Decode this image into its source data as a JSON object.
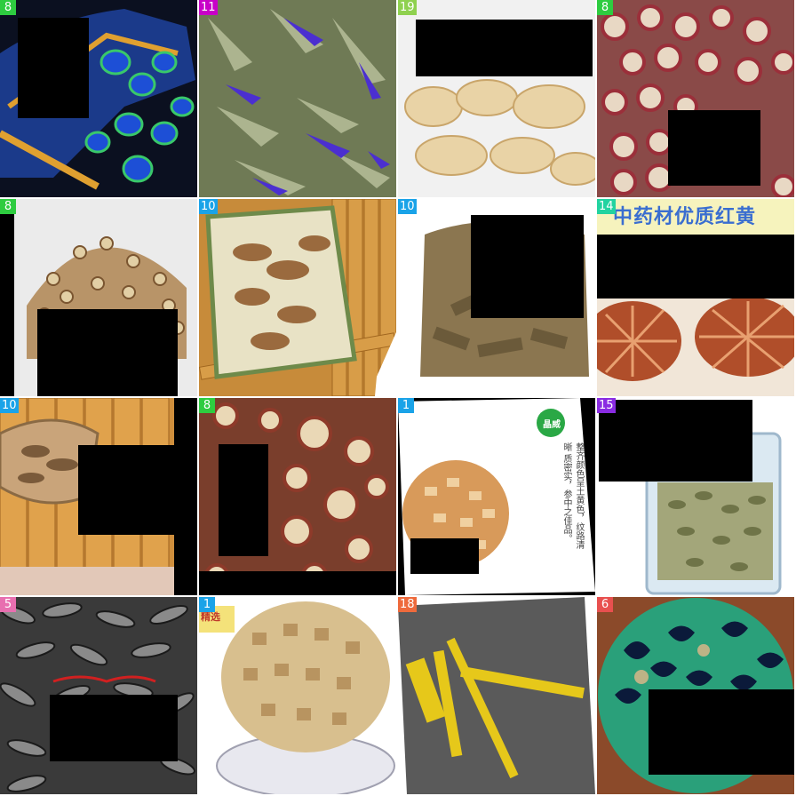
{
  "tiles": [
    {
      "label": "8",
      "badge_color": "#2ecc40"
    },
    {
      "label": "11",
      "badge_color": "#c800c8"
    },
    {
      "label": "19",
      "badge_color": "#8fd14f"
    },
    {
      "label": "8",
      "badge_color": "#2ecc40"
    },
    {
      "label": "8",
      "badge_color": "#2ecc40"
    },
    {
      "label": "10",
      "badge_color": "#1aa3e8"
    },
    {
      "label": "10",
      "badge_color": "#1aa3e8"
    },
    {
      "label": "14",
      "badge_color": "#22d3a0"
    },
    {
      "label": "10",
      "badge_color": "#1aa3e8"
    },
    {
      "label": "8",
      "badge_color": "#2ecc40"
    },
    {
      "label": "1",
      "badge_color": "#1aa3e8"
    },
    {
      "label": "15",
      "badge_color": "#8a2be2"
    },
    {
      "label": "5",
      "badge_color": "#e86fb0"
    },
    {
      "label": "1",
      "badge_color": "#1aa3e8"
    },
    {
      "label": "18",
      "badge_color": "#ee6a3c"
    },
    {
      "label": "6",
      "badge_color": "#e8504f"
    }
  ],
  "product_text": {
    "tile8_banner": "中药材优质红黄",
    "tile11_badge": "晶威",
    "tile11_body": "整齐颜色呈土黄色，纹路清晰 质密实，参中之佳品。",
    "tile14_tag": "精选"
  }
}
